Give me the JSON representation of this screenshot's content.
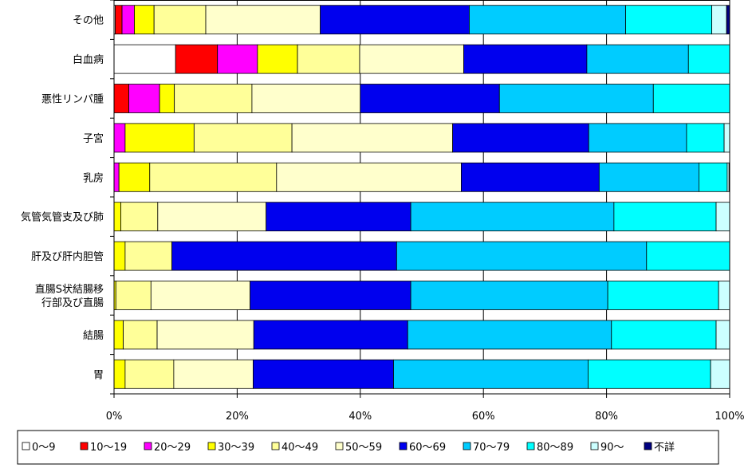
{
  "chart_data": {
    "type": "bar",
    "orientation": "horizontal",
    "stacked": "percent",
    "title": "",
    "xlabel": "",
    "ylabel": "",
    "xlim": [
      0,
      100
    ],
    "x_ticks": [
      "0%",
      "20%",
      "40%",
      "60%",
      "80%",
      "100%"
    ],
    "grid": "vertical",
    "legend_position": "bottom",
    "categories": [
      {
        "label": [
          "その他"
        ]
      },
      {
        "label": [
          "白血病"
        ]
      },
      {
        "label": [
          "悪性リンパ腫"
        ]
      },
      {
        "label": [
          "子宮"
        ]
      },
      {
        "label": [
          "乳房"
        ]
      },
      {
        "label": [
          "気管気管支及び肺"
        ]
      },
      {
        "label": [
          "肝及び肝内胆管"
        ]
      },
      {
        "label": [
          "直腸S状結腸移",
          "行部及び直腸"
        ]
      },
      {
        "label": [
          "結腸"
        ]
      },
      {
        "label": [
          "胃"
        ]
      }
    ],
    "series": [
      {
        "name": "0～9",
        "color": "#ffffff",
        "values": [
          0.2,
          10.0,
          0.0,
          0.0,
          0.0,
          0.0,
          0.0,
          0.0,
          0.0,
          0.0
        ]
      },
      {
        "name": "10～19",
        "color": "#ff0000",
        "values": [
          1.1,
          6.8,
          2.4,
          0.0,
          0.0,
          0.0,
          0.0,
          0.0,
          0.0,
          0.0
        ]
      },
      {
        "name": "20～29",
        "color": "#ff00ff",
        "values": [
          2.0,
          6.5,
          5.0,
          1.8,
          0.8,
          0.0,
          0.0,
          0.0,
          0.0,
          0.0
        ]
      },
      {
        "name": "30～39",
        "color": "#ffff00",
        "values": [
          3.2,
          6.5,
          2.4,
          11.2,
          5.0,
          1.1,
          1.8,
          0.3,
          1.5,
          1.8
        ]
      },
      {
        "name": "40～49",
        "color": "#ffff99",
        "values": [
          8.4,
          10.1,
          12.6,
          15.9,
          20.6,
          6.0,
          7.6,
          5.7,
          5.5,
          7.9
        ]
      },
      {
        "name": "50～59",
        "color": "#ffffcc",
        "values": [
          18.6,
          16.9,
          17.6,
          26.1,
          30.0,
          17.6,
          0.0,
          16.1,
          15.7,
          12.9
        ]
      },
      {
        "name": "60～69",
        "color": "#0000ee",
        "values": [
          24.2,
          20.0,
          22.6,
          22.1,
          22.4,
          23.5,
          36.5,
          26.1,
          25.0,
          22.8
        ]
      },
      {
        "name": "70～79",
        "color": "#00ccff",
        "values": [
          25.4,
          16.5,
          25.0,
          15.9,
          16.2,
          33.0,
          40.6,
          32.0,
          33.1,
          31.6
        ]
      },
      {
        "name": "80～89",
        "color": "#00ffff",
        "values": [
          14.0,
          6.7,
          12.4,
          6.1,
          4.6,
          16.6,
          13.5,
          18.0,
          17.0,
          19.9
        ]
      },
      {
        "name": "90～",
        "color": "#ccffff",
        "values": [
          2.4,
          0.0,
          0.0,
          0.9,
          0.3,
          2.2,
          0.0,
          1.8,
          2.2,
          3.1
        ]
      },
      {
        "name": "不詳",
        "color": "#000080",
        "values": [
          0.5,
          0.0,
          0.0,
          0.0,
          0.1,
          0.0,
          0.0,
          0.0,
          0.0,
          0.0
        ]
      }
    ]
  }
}
